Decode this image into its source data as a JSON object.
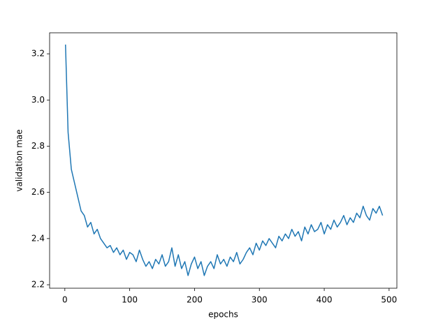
{
  "chart_data": {
    "type": "line",
    "x_label": "epochs",
    "y_label": "validation mae",
    "x": [
      1,
      5,
      10,
      15,
      20,
      25,
      30,
      35,
      40,
      45,
      50,
      55,
      60,
      65,
      70,
      75,
      80,
      85,
      90,
      95,
      100,
      105,
      110,
      115,
      120,
      125,
      130,
      135,
      140,
      145,
      150,
      155,
      160,
      165,
      170,
      175,
      180,
      185,
      190,
      195,
      200,
      205,
      210,
      215,
      220,
      225,
      230,
      235,
      240,
      245,
      250,
      255,
      260,
      265,
      270,
      275,
      280,
      285,
      290,
      295,
      300,
      305,
      310,
      315,
      320,
      325,
      330,
      335,
      340,
      345,
      350,
      355,
      360,
      365,
      370,
      375,
      380,
      385,
      390,
      395,
      400,
      405,
      410,
      415,
      420,
      425,
      430,
      435,
      440,
      445,
      450,
      455,
      460,
      465,
      470,
      475,
      480,
      485,
      490
    ],
    "series": [
      {
        "color": "#1f77b4",
        "values": [
          3.24,
          2.86,
          2.7,
          2.64,
          2.58,
          2.52,
          2.5,
          2.45,
          2.47,
          2.42,
          2.44,
          2.4,
          2.38,
          2.36,
          2.37,
          2.34,
          2.36,
          2.33,
          2.35,
          2.31,
          2.34,
          2.33,
          2.3,
          2.35,
          2.31,
          2.28,
          2.3,
          2.27,
          2.31,
          2.29,
          2.33,
          2.28,
          2.3,
          2.36,
          2.28,
          2.33,
          2.27,
          2.3,
          2.24,
          2.29,
          2.32,
          2.27,
          2.3,
          2.24,
          2.28,
          2.3,
          2.27,
          2.33,
          2.29,
          2.31,
          2.28,
          2.32,
          2.3,
          2.34,
          2.29,
          2.31,
          2.34,
          2.36,
          2.33,
          2.38,
          2.35,
          2.39,
          2.37,
          2.4,
          2.38,
          2.36,
          2.41,
          2.39,
          2.42,
          2.4,
          2.44,
          2.41,
          2.43,
          2.39,
          2.45,
          2.42,
          2.46,
          2.43,
          2.44,
          2.47,
          2.42,
          2.46,
          2.44,
          2.48,
          2.45,
          2.47,
          2.5,
          2.46,
          2.49,
          2.47,
          2.51,
          2.49,
          2.54,
          2.5,
          2.48,
          2.53,
          2.51,
          2.54,
          2.5
        ]
      }
    ],
    "xlim": [
      -23.5,
      512
    ],
    "xticks": [
      0,
      100,
      200,
      300,
      400,
      500
    ],
    "ylim": [
      2.185,
      3.291
    ],
    "yticks": [
      2.2,
      2.4,
      2.6,
      2.8,
      {
        "value": 3,
        "label": "3.0"
      },
      3.2
    ]
  }
}
